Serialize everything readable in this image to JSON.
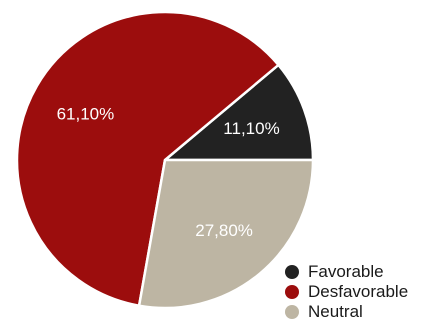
{
  "chart_data": {
    "type": "pie",
    "slices": [
      {
        "name": "Favorable",
        "value": 11.1,
        "label": "11,10%",
        "color": "#222222"
      },
      {
        "name": "Desfavorable",
        "value": 61.1,
        "label": "61,10%",
        "color": "#9c0d0d"
      },
      {
        "name": "Neutral",
        "value": 27.8,
        "label": "27,80%",
        "color": "#bdb5a3"
      }
    ],
    "start_angle_deg": 0,
    "direction": "counterclockwise",
    "legend_position": "bottom-right"
  },
  "legend": {
    "items": [
      {
        "label": "Favorable",
        "color": "#222222"
      },
      {
        "label": "Desfavorable",
        "color": "#9c0d0d"
      },
      {
        "label": "Neutral",
        "color": "#bdb5a3"
      }
    ]
  }
}
